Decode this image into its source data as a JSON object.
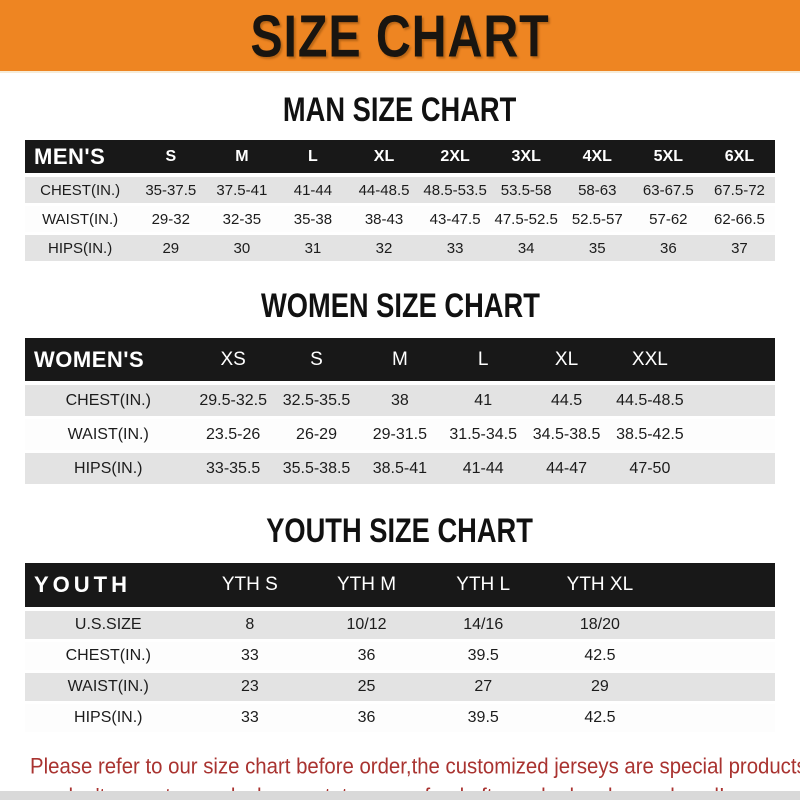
{
  "banner": {
    "title": "SIZE CHART",
    "bg_color": "#ee8522",
    "text_color": "#191510"
  },
  "sections": {
    "men": {
      "title": "MAN SIZE CHART",
      "header_label": "MEN'S",
      "columns": [
        "S",
        "M",
        "L",
        "XL",
        "2XL",
        "3XL",
        "4XL",
        "5XL",
        "6XL"
      ],
      "rows": [
        {
          "label": "CHEST(IN.)",
          "values": [
            "35-37.5",
            "37.5-41",
            "41-44",
            "44-48.5",
            "48.5-53.5",
            "53.5-58",
            "58-63",
            "63-67.5",
            "67.5-72"
          ]
        },
        {
          "label": "WAIST(IN.)",
          "values": [
            "29-32",
            "32-35",
            "35-38",
            "38-43",
            "43-47.5",
            "47.5-52.5",
            "52.5-57",
            "57-62",
            "62-66.5"
          ]
        },
        {
          "label": "HIPS(IN.)",
          "values": [
            "29",
            "30",
            "31",
            "32",
            "33",
            "34",
            "35",
            "36",
            "37"
          ]
        }
      ]
    },
    "women": {
      "title": "WOMEN SIZE CHART",
      "header_label": "WOMEN'S",
      "columns": [
        "XS",
        "S",
        "M",
        "L",
        "XL",
        "XXL"
      ],
      "rows": [
        {
          "label": "CHEST(IN.)",
          "values": [
            "29.5-32.5",
            "32.5-35.5",
            "38",
            "41",
            "44.5",
            "44.5-48.5"
          ]
        },
        {
          "label": "WAIST(IN.)",
          "values": [
            "23.5-26",
            "26-29",
            "29-31.5",
            "31.5-34.5",
            "34.5-38.5",
            "38.5-42.5"
          ]
        },
        {
          "label": "HIPS(IN.)",
          "values": [
            "33-35.5",
            "35.5-38.5",
            "38.5-41",
            "41-44",
            "44-47",
            "47-50"
          ]
        }
      ]
    },
    "youth": {
      "title": "YOUTH SIZE CHART",
      "header_label": "YOUTH",
      "columns": [
        "YTH S",
        "YTH M",
        "YTH L",
        "YTH XL"
      ],
      "rows": [
        {
          "label": "U.S.SIZE",
          "values": [
            "8",
            "10/12",
            "14/16",
            "18/20"
          ]
        },
        {
          "label": "CHEST(IN.)",
          "values": [
            "33",
            "36",
            "39.5",
            "42.5"
          ]
        },
        {
          "label": "WAIST(IN.)",
          "values": [
            "23",
            "25",
            "27",
            "29"
          ]
        },
        {
          "label": "HIPS(IN.)",
          "values": [
            "33",
            "36",
            "39.5",
            "42.5"
          ]
        }
      ]
    }
  },
  "footer": {
    "line1": "Please refer to our size chart before order,the customized jerseys are special products,",
    "line2": "we don't accept cancel, change, teturn or refund after order has been placed!",
    "text_color": "#a93330"
  },
  "colors": {
    "header_bar": "#181818",
    "row_shade": "#e3e3e3",
    "row_plain": "#fdfdfd"
  }
}
